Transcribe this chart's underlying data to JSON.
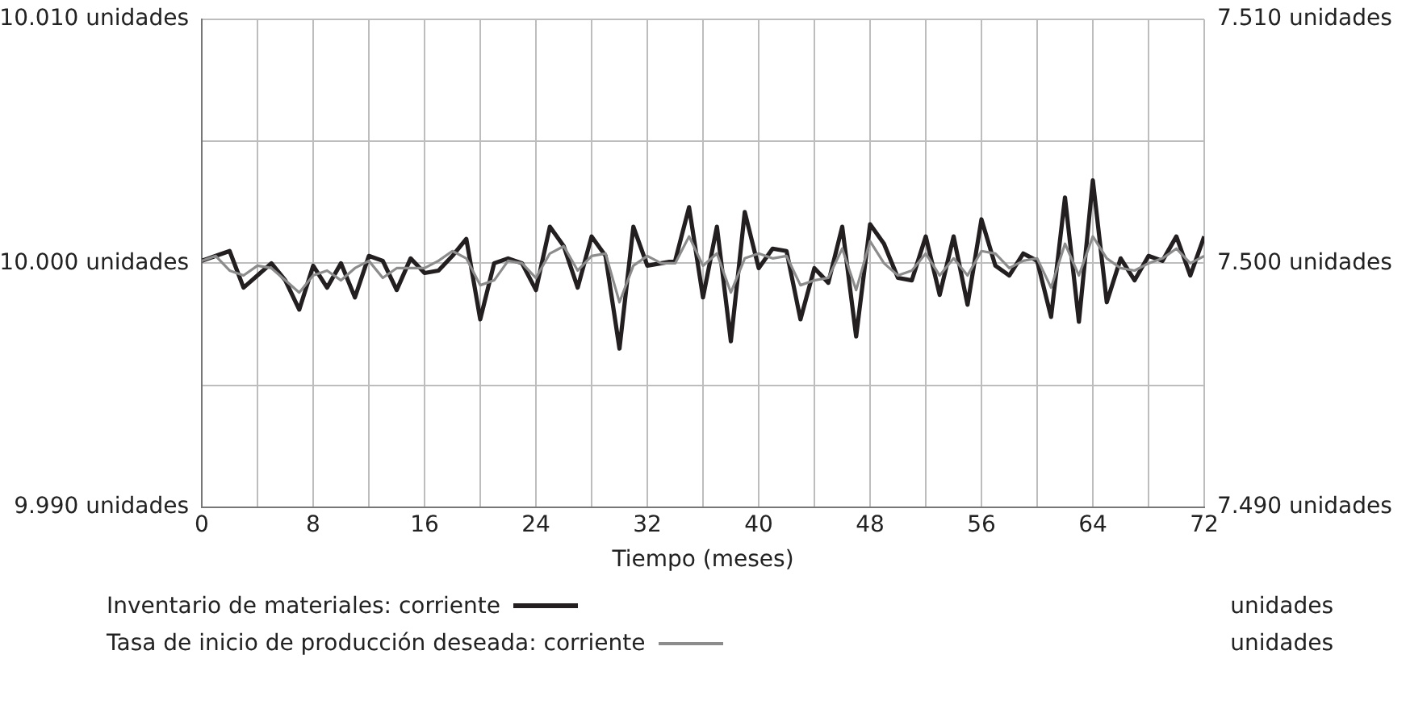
{
  "chart_data": {
    "type": "line",
    "xlabel": "Tiempo (meses)",
    "x": [
      0,
      1,
      2,
      3,
      4,
      5,
      6,
      7,
      8,
      9,
      10,
      11,
      12,
      13,
      14,
      15,
      16,
      17,
      18,
      19,
      20,
      21,
      22,
      23,
      24,
      25,
      26,
      27,
      28,
      29,
      30,
      31,
      32,
      33,
      34,
      35,
      36,
      37,
      38,
      39,
      40,
      41,
      42,
      43,
      44,
      45,
      46,
      47,
      48,
      49,
      50,
      51,
      52,
      53,
      54,
      55,
      56,
      57,
      58,
      59,
      60,
      61,
      62,
      63,
      64,
      65,
      66,
      67,
      68,
      69,
      70,
      71,
      72
    ],
    "series": [
      {
        "name": "Inventario de materiales: corriente",
        "color": "#231f20",
        "axis": "y",
        "values": [
          10000.1,
          10000.3,
          10000.5,
          9999.0,
          9999.5,
          10000.0,
          9999.3,
          9998.1,
          9999.9,
          9999.0,
          10000.0,
          9998.6,
          10000.3,
          10000.1,
          9998.9,
          10000.2,
          9999.6,
          9999.7,
          10000.3,
          10001.0,
          9997.7,
          10000.0,
          10000.2,
          10000.0,
          9998.9,
          10001.5,
          10000.7,
          9999.0,
          10001.1,
          10000.3,
          9996.5,
          10001.5,
          9999.9,
          10000.0,
          10000.1,
          10002.3,
          9998.6,
          10001.5,
          9996.8,
          10002.1,
          9999.8,
          10000.6,
          10000.5,
          9997.7,
          9999.8,
          9999.2,
          10001.5,
          9997.0,
          10001.6,
          10000.8,
          9999.4,
          9999.3,
          10001.1,
          9998.7,
          10001.1,
          9998.3,
          10001.8,
          9999.9,
          9999.5,
          10000.4,
          10000.1,
          9997.8,
          10002.7,
          9997.6,
          10003.4,
          9998.4,
          10000.2,
          9999.3,
          10000.3,
          10000.1,
          10001.1,
          9999.5,
          10001.1
        ]
      },
      {
        "name": "Tasa de inicio de producción deseada: corriente",
        "color": "#8c8c8c",
        "axis": "y2",
        "values": [
          7500.1,
          7500.3,
          7499.7,
          7499.5,
          7499.9,
          7499.8,
          7499.3,
          7498.8,
          7499.5,
          7499.7,
          7499.3,
          7499.8,
          7500.1,
          7499.4,
          7499.8,
          7499.8,
          7499.8,
          7500.1,
          7500.5,
          7500.2,
          7499.1,
          7499.3,
          7500.1,
          7500.0,
          7499.4,
          7500.4,
          7500.7,
          7499.7,
          7500.3,
          7500.4,
          7498.4,
          7499.9,
          7500.3,
          7500.0,
          7500.0,
          7501.1,
          7499.9,
          7500.4,
          7498.8,
          7500.2,
          7500.4,
          7500.2,
          7500.3,
          7499.1,
          7499.3,
          7499.4,
          7500.6,
          7498.9,
          7500.9,
          7500.0,
          7499.5,
          7499.7,
          7500.4,
          7499.5,
          7500.2,
          7499.5,
          7500.5,
          7500.4,
          7499.8,
          7500.1,
          7500.2,
          7499.0,
          7500.8,
          7499.5,
          7501.1,
          7500.2,
          7499.8,
          7499.7,
          7500.0,
          7500.2,
          7500.6,
          7500.0,
          7500.3
        ]
      }
    ],
    "xlim": [
      0,
      72
    ],
    "xticks": [
      0,
      {
        "value": 4,
        "label": null
      },
      8,
      {
        "value": 12,
        "label": null
      },
      16,
      {
        "value": 20,
        "label": null
      },
      24,
      {
        "value": 28,
        "label": null
      },
      32,
      {
        "value": 36,
        "label": null
      },
      40,
      {
        "value": 44,
        "label": null
      },
      48,
      {
        "value": 52,
        "label": null
      },
      56,
      {
        "value": 60,
        "label": null
      },
      64,
      {
        "value": 68,
        "label": null
      },
      72
    ],
    "ylim": [
      9990,
      10010
    ],
    "yticks": [
      {
        "value": 9990,
        "label": "9.990 unidades"
      },
      {
        "value": 9995,
        "label": null
      },
      {
        "value": 10000,
        "label": "10.000 unidades"
      },
      {
        "value": 10005,
        "label": null
      },
      {
        "value": 10010,
        "label": "10.010 unidades"
      }
    ],
    "y2lim": [
      7490,
      7510
    ],
    "y2ticks": [
      {
        "value": 7490,
        "label": "7.490 unidades"
      },
      {
        "value": 7495,
        "label": null
      },
      {
        "value": 7500,
        "label": "7.500 unidades"
      },
      {
        "value": 7505,
        "label": null
      },
      {
        "value": 7510,
        "label": "7.510 unidades"
      }
    ],
    "annotations": [
      "unidades",
      "unidades"
    ],
    "grid": true,
    "legend": "bottom",
    "marker": "none",
    "line_style": "solid"
  }
}
